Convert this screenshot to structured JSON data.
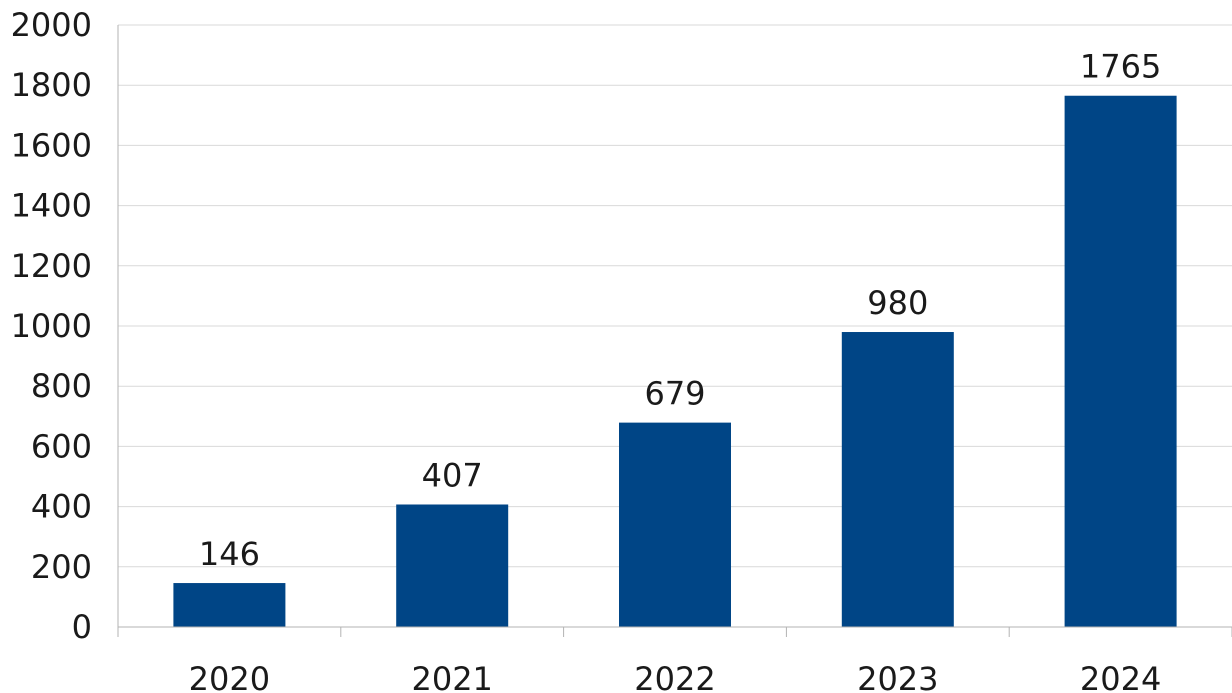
{
  "chart_data": {
    "type": "bar",
    "categories": [
      "2020",
      "2021",
      "2022",
      "2023",
      "2024"
    ],
    "values": [
      146,
      407,
      679,
      980,
      1765
    ],
    "data_labels": [
      "146",
      "407",
      "679",
      "980",
      "1765"
    ],
    "y_ticks": [
      "0",
      "200",
      "400",
      "600",
      "800",
      "1000",
      "1200",
      "1400",
      "1600",
      "1800",
      "2000"
    ],
    "title": "",
    "xlabel": "",
    "ylabel": "",
    "ylim": [
      0,
      2000
    ],
    "grid": true,
    "legend": "none",
    "bar_color": "#004586"
  }
}
